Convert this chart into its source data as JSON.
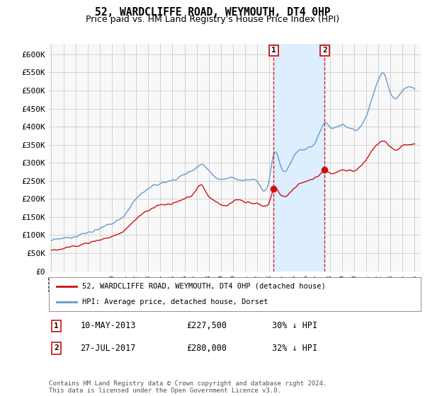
{
  "title": "52, WARDCLIFFE ROAD, WEYMOUTH, DT4 0HP",
  "subtitle": "Price paid vs. HM Land Registry's House Price Index (HPI)",
  "title_fontsize": 10.5,
  "subtitle_fontsize": 9,
  "ylabel_ticks": [
    "£0",
    "£50K",
    "£100K",
    "£150K",
    "£200K",
    "£250K",
    "£300K",
    "£350K",
    "£400K",
    "£450K",
    "£500K",
    "£550K",
    "£600K"
  ],
  "ytick_values": [
    0,
    50000,
    100000,
    150000,
    200000,
    250000,
    300000,
    350000,
    400000,
    450000,
    500000,
    550000,
    600000
  ],
  "ylim": [
    0,
    630000
  ],
  "xlim_start": 1994.8,
  "xlim_end": 2025.5,
  "hpi_color": "#6699cc",
  "hpi_fill_color": "#ddeeff",
  "shade_fill_color": "#ddeeff",
  "price_color": "#cc1111",
  "marker1_x": 2013.36,
  "marker1_y": 227500,
  "marker2_x": 2017.57,
  "marker2_y": 280000,
  "dashed_line_color": "#cc1111",
  "legend_label_price": "52, WARDCLIFFE ROAD, WEYMOUTH, DT4 0HP (detached house)",
  "legend_label_hpi": "HPI: Average price, detached house, Dorset",
  "ann1_label": "1",
  "ann1_date": "10-MAY-2013",
  "ann1_price": "£227,500",
  "ann1_pct": "30% ↓ HPI",
  "ann2_label": "2",
  "ann2_date": "27-JUL-2017",
  "ann2_price": "£280,000",
  "ann2_pct": "32% ↓ HPI",
  "copyright": "Contains HM Land Registry data © Crown copyright and database right 2024.\nThis data is licensed under the Open Government Licence v3.0.",
  "background_color": "#ffffff",
  "plot_bg_color": "#f8f8f8"
}
